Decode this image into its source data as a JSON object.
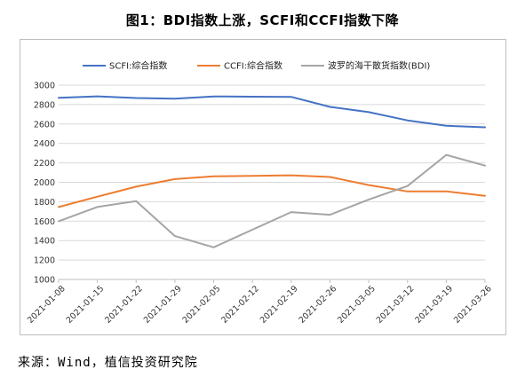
{
  "title": "图1：BDI指数上涨，SCFI和CCFI指数下降",
  "source": "来源：Wind，植信投资研究院",
  "chart_data": {
    "type": "line",
    "title": "图1：BDI指数上涨，SCFI和CCFI指数下降",
    "xlabel": "",
    "ylabel": "",
    "x": [
      "2021-01-08",
      "2021-01-15",
      "2021-01-22",
      "2021-01-29",
      "2021-02-05",
      "2021-02-12",
      "2021-02-19",
      "2021-02-26",
      "2021-03-05",
      "2021-03-12",
      "2021-03-19",
      "2021-03-26"
    ],
    "ylim": [
      1000,
      3000
    ],
    "yticks": [
      1000,
      1200,
      1400,
      1600,
      1800,
      2000,
      2200,
      2400,
      2600,
      2800,
      3000
    ],
    "grid": true,
    "legend": "top",
    "series": [
      {
        "name": "SCFI:综合指数",
        "color": "#4472c4",
        "values": [
          2870,
          2885,
          2868,
          2861,
          2884,
          2881,
          2879,
          2776,
          2722,
          2637,
          2582,
          2566
        ]
      },
      {
        "name": "CCFI:综合指数",
        "color": "#ed7d31",
        "values": [
          1745,
          1852,
          1955,
          2033,
          2061,
          2066,
          2072,
          2055,
          1972,
          1906,
          1906,
          1861
        ]
      },
      {
        "name": "波罗的海干散货指数(BDI)",
        "color": "#a5a5a5",
        "values": [
          1599,
          1746,
          1806,
          1447,
          1331,
          1512,
          1693,
          1666,
          1823,
          1962,
          2282,
          2172
        ]
      }
    ]
  }
}
